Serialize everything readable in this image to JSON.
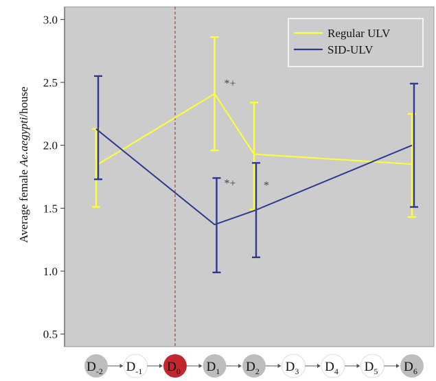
{
  "chart_data": {
    "type": "line",
    "ylabel_prefix": "Average female ",
    "ylabel_italic": "Ae.aegypti",
    "ylabel_suffix": "/house",
    "ylim": [
      0.4,
      3.1
    ],
    "yticks": [
      "0.5",
      "1.0",
      "1.5",
      "2.0",
      "2.5",
      "3.0"
    ],
    "grid": false,
    "legend_position": "top-right",
    "colors": {
      "plot_bg": "#cccccc",
      "regular": "#ffff33",
      "sid": "#2b3990",
      "day0_fill": "#c1272d",
      "day_gray": "#bdbdbd",
      "vline": "#b03030"
    },
    "x_days": [
      {
        "base": "D",
        "sub": "-2",
        "style": "gray"
      },
      {
        "base": "D",
        "sub": "-1",
        "style": "white"
      },
      {
        "base": "D",
        "sub": "0",
        "style": "red"
      },
      {
        "base": "D",
        "sub": "1",
        "style": "gray"
      },
      {
        "base": "D",
        "sub": "2",
        "style": "gray"
      },
      {
        "base": "D",
        "sub": "3",
        "style": "white"
      },
      {
        "base": "D",
        "sub": "4",
        "style": "white"
      },
      {
        "base": "D",
        "sub": "5",
        "style": "white"
      },
      {
        "base": "D",
        "sub": "6",
        "style": "gray"
      }
    ],
    "intervention_day": "D0",
    "series": [
      {
        "name": "Regular ULV",
        "color_key": "regular",
        "points": [
          {
            "day": "D-2",
            "value": 1.84,
            "lower": 1.51,
            "upper": 2.13
          },
          {
            "day": "D1",
            "value": 2.41,
            "lower": 1.96,
            "upper": 2.86,
            "annotation": "*+"
          },
          {
            "day": "D2",
            "value": 1.93,
            "lower": 1.49,
            "upper": 2.34
          },
          {
            "day": "D6",
            "value": 1.85,
            "lower": 1.43,
            "upper": 2.25
          }
        ]
      },
      {
        "name": "SID-ULV",
        "color_key": "sid",
        "points": [
          {
            "day": "D-2",
            "value": 2.13,
            "lower": 1.73,
            "upper": 2.55
          },
          {
            "day": "D1",
            "value": 1.37,
            "lower": 0.99,
            "upper": 1.74,
            "annotation": "*+"
          },
          {
            "day": "D2",
            "value": 1.48,
            "lower": 1.11,
            "upper": 1.86,
            "annotation": "*"
          },
          {
            "day": "D6",
            "value": 2.0,
            "lower": 1.51,
            "upper": 2.49
          }
        ]
      }
    ]
  }
}
